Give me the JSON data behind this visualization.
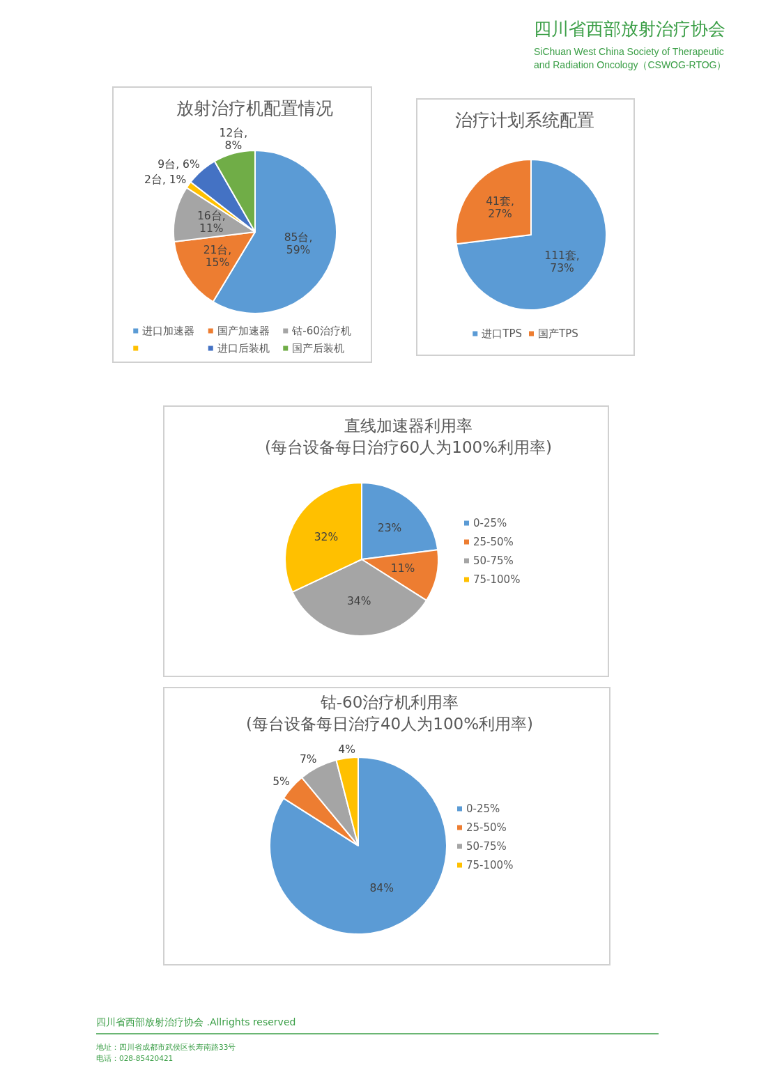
{
  "chart_data": [
    {
      "type": "pie",
      "title": "放射治疗机配置情况",
      "categories": [
        "进口加速器",
        "国产加速器",
        "钴-60治疗机",
        null,
        "进口后装机",
        "国产后装机"
      ],
      "values": [
        85,
        21,
        16,
        2,
        9,
        12
      ],
      "colors": [
        "#5b9bd5",
        "#ed7d31",
        "#a5a5a5",
        "#ffc000",
        "#4472c4",
        "#70ad47"
      ],
      "value_labels": [
        "85台, 59%",
        "21台, 15%",
        "16台, 11%",
        "2台, 1%",
        "9台, 6%",
        "12台, 8%"
      ],
      "legend": "bottom",
      "annotations": [
        "四川省西部放射治疗协会",
        "SiChuan West China Society of Therapeutic and Radiation Oncology（CSWOG-RTOG）"
      ]
    },
    {
      "type": "pie",
      "title": "治疗计划系统配置",
      "categories": [
        "进口TPS",
        "国产TPS"
      ],
      "values": [
        111,
        41
      ],
      "colors": [
        "#5b9bd5",
        "#ed7d31"
      ],
      "value_labels": [
        "111套, 73%",
        "41套, 27%"
      ],
      "legend": "bottom"
    },
    {
      "type": "pie",
      "title": "直线加速器利用率",
      "subtitle": "(每台设备每日治疗60人为100%利用率)",
      "categories": [
        "0-25%",
        "25-50%",
        "50-75%",
        "75-100%"
      ],
      "values": [
        23,
        11,
        34,
        32
      ],
      "colors": [
        "#5b9bd5",
        "#ed7d31",
        "#a5a5a5",
        "#ffc000"
      ],
      "value_labels": [
        "23%",
        "11%",
        "34%",
        "32%"
      ],
      "legend": "right"
    },
    {
      "type": "pie",
      "title": "钴-60治疗机利用率",
      "subtitle": "(每台设备每日治疗40人为100%利用率)",
      "categories": [
        "0-25%",
        "25-50%",
        "50-75%",
        "75-100%"
      ],
      "values": [
        84,
        5,
        7,
        4
      ],
      "colors": [
        "#5b9bd5",
        "#ed7d31",
        "#a5a5a5",
        "#ffc000"
      ],
      "value_labels": [
        "84%",
        "5%",
        "7%",
        "4%"
      ],
      "legend": "right",
      "annotations": [
        "四川省西部放射治疗协会 .Allrights reserved",
        "地址：四川省成都市武侯区长寿南路33号",
        "电话：028-85420421"
      ]
    }
  ]
}
